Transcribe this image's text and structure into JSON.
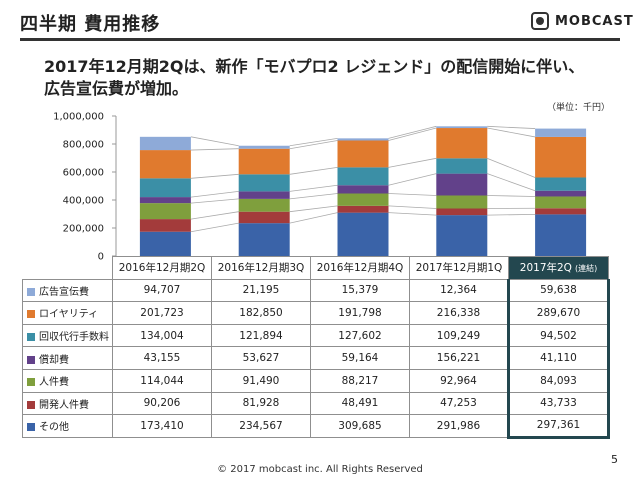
{
  "header": {
    "title": "四半期 費用推移",
    "logo_text": "MOBCAST"
  },
  "headline": {
    "line1": "2017年12月期2Qは、新作「モバプロ2 レジェンド」の配信開始に伴い、",
    "line2": "広告宣伝費が増加。"
  },
  "unit_note": "（単位：千円）",
  "colors": {
    "その他": "#3a63a8",
    "開発人件費": "#a33b3b",
    "人件費": "#7f9f3d",
    "償却費": "#62418a",
    "回収代行手数料": "#3b8fa6",
    "ロイヤリティ": "#e07a2e",
    "広告宣伝費": "#8eaad8",
    "highlight": "#23474f"
  },
  "chart_data": {
    "type": "bar",
    "stacked": true,
    "categories": [
      "2016年12月期2Q",
      "2016年12月期3Q",
      "2016年12月期4Q",
      "2017年12月期1Q",
      "2017年2Q"
    ],
    "highlight_category_suffix": "(連結)",
    "ylim": [
      0,
      1000000
    ],
    "yticks": [
      "0",
      "200,000",
      "400,000",
      "600,000",
      "800,000",
      "1,000,000"
    ],
    "series": [
      {
        "name": "その他",
        "values": [
          173410,
          234567,
          309685,
          291986,
          297361
        ]
      },
      {
        "name": "開発人件費",
        "values": [
          90206,
          81928,
          48491,
          47253,
          43733
        ]
      },
      {
        "name": "人件費",
        "values": [
          114044,
          91490,
          88217,
          92964,
          84093
        ]
      },
      {
        "name": "償却費",
        "values": [
          43155,
          53627,
          59164,
          156221,
          41110
        ]
      },
      {
        "name": "回収代行手数料",
        "values": [
          134004,
          121894,
          127602,
          109249,
          94502
        ]
      },
      {
        "name": "ロイヤリティ",
        "values": [
          201723,
          182850,
          191798,
          216338,
          289670
        ]
      },
      {
        "name": "広告宣伝費",
        "values": [
          94707,
          21195,
          15379,
          12364,
          59638
        ]
      }
    ]
  },
  "table": {
    "rows_top_to_bottom": [
      "広告宣伝費",
      "ロイヤリティ",
      "回収代行手数料",
      "償却費",
      "人件費",
      "開発人件費",
      "その他"
    ],
    "cells": {
      "広告宣伝費": [
        "94,707",
        "21,195",
        "15,379",
        "12,364",
        "59,638"
      ],
      "ロイヤリティ": [
        "201,723",
        "182,850",
        "191,798",
        "216,338",
        "289,670"
      ],
      "回収代行手数料": [
        "134,004",
        "121,894",
        "127,602",
        "109,249",
        "94,502"
      ],
      "償却費": [
        "43,155",
        "53,627",
        "59,164",
        "156,221",
        "41,110"
      ],
      "人件費": [
        "114,044",
        "91,490",
        "88,217",
        "92,964",
        "84,093"
      ],
      "開発人件費": [
        "90,206",
        "81,928",
        "48,491",
        "47,253",
        "43,733"
      ],
      "その他": [
        "173,410",
        "234,567",
        "309,685",
        "291,986",
        "297,361"
      ]
    }
  },
  "page_number": "5",
  "footer": "© 2017 mobcast inc. All Rights Reserved"
}
